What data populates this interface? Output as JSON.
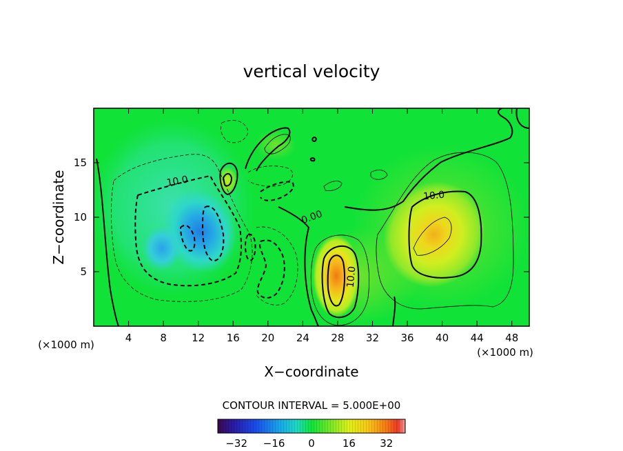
{
  "chart_data": {
    "type": "heatmap",
    "title": "vertical velocity",
    "xlabel": "X−coordinate",
    "ylabel": "Z−coordinate",
    "x_unit_left": "(×1000 m)",
    "x_unit_right": "(×1000 m)",
    "xlim": [
      0,
      50
    ],
    "ylim": [
      0,
      20
    ],
    "x_ticks": [
      4,
      8,
      12,
      16,
      20,
      24,
      28,
      32,
      36,
      40,
      44,
      48
    ],
    "y_ticks": [
      5,
      10,
      15
    ],
    "contour_interval_text": "CONTOUR INTERVAL = 5.000E+00",
    "colorbar": {
      "range": [
        -40,
        40
      ],
      "ticks": [
        -32,
        -16,
        0,
        16,
        32
      ],
      "tick_labels": [
        "−32",
        "−16",
        "0",
        "16",
        "32"
      ]
    },
    "contour_labels": [
      {
        "text": "10.0",
        "x": 9.9,
        "z": 13.2
      },
      {
        "text": "0.00",
        "x": 25.0,
        "z": 10.3
      },
      {
        "text": "10.0",
        "x": 29.0,
        "z": 4.6
      },
      {
        "text": "10.0",
        "x": 39.3,
        "z": 12.0
      }
    ],
    "cells": [
      {
        "x": 12.0,
        "z": 8.7,
        "value": -22
      },
      {
        "x": 8.0,
        "z": 8.5,
        "value": -17
      },
      {
        "x": 28.0,
        "z": 4.5,
        "value": 30
      },
      {
        "x": 39.0,
        "z": 9.0,
        "value": 22
      },
      {
        "x": 15.0,
        "z": 13.5,
        "value": 14
      },
      {
        "x": 23.0,
        "z": 16.0,
        "value": 6
      },
      {
        "x": 49.0,
        "z": 18.5,
        "value": -6
      }
    ]
  },
  "colors": {
    "background_field": "#10e238"
  }
}
